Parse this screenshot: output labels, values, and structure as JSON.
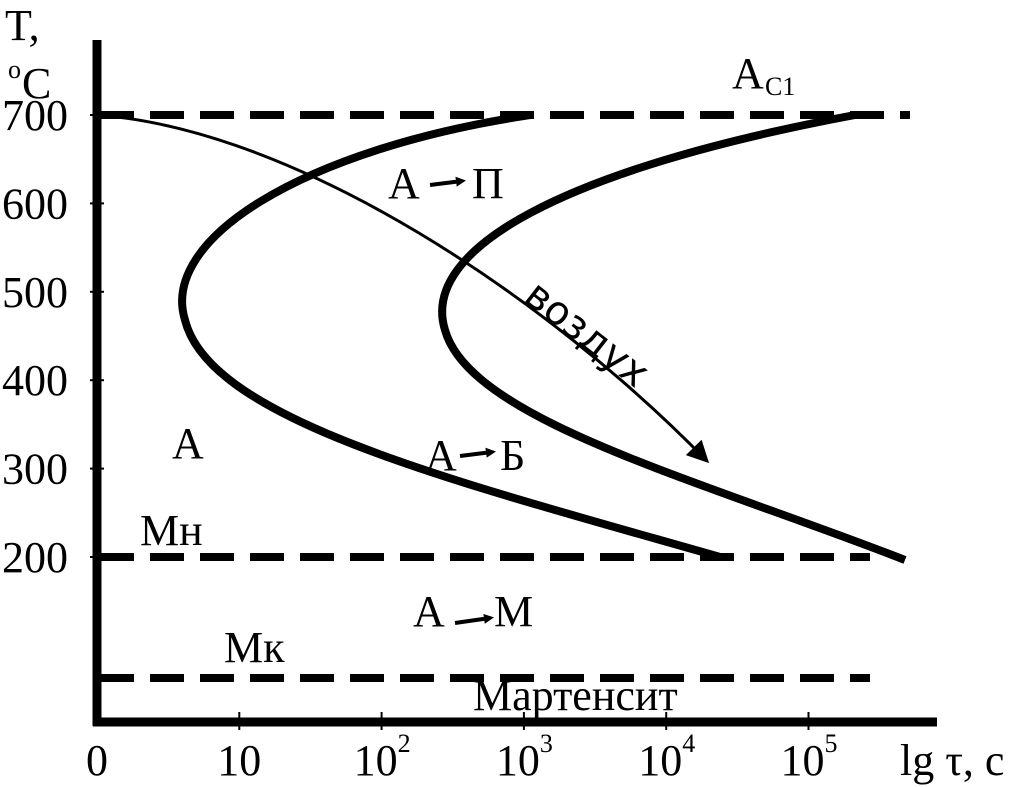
{
  "axes": {
    "y_label": "T,",
    "y_unit_sup": "o",
    "y_unit": "C",
    "y_ticks": [
      "700",
      "600",
      "500",
      "400",
      "300",
      "200"
    ],
    "x_ticks": [
      {
        "base": "0"
      },
      {
        "base": "10"
      },
      {
        "base": "10",
        "exp": "2"
      },
      {
        "base": "10",
        "exp": "3"
      },
      {
        "base": "10",
        "exp": "4"
      },
      {
        "base": "10",
        "exp": "5"
      }
    ],
    "x_label": "lg τ, с"
  },
  "labels": {
    "ac1": "A",
    "ac1_sub": "C1",
    "pearlite_from": "A",
    "pearlite_to": "П",
    "air": "воздух",
    "austenite": "A",
    "bainite_from": "A",
    "bainite_to": "Б",
    "ms": "Mн",
    "mf": "Mк",
    "martensite_from": "A",
    "martensite_to": "M",
    "martensite": "Мартенсит"
  }
}
